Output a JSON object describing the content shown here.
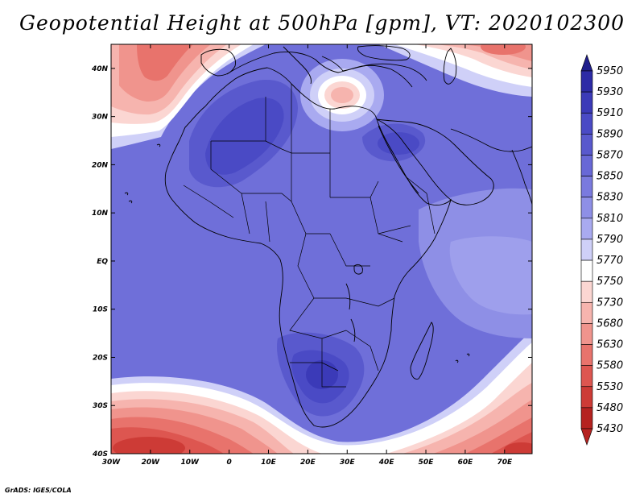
{
  "title": "Geopotential Height at 500hPa [gpm], VT: 2020102300",
  "footer": "GrADS: IGES/COLA",
  "map": {
    "lon_range": [
      -30,
      77
    ],
    "lat_range": [
      -40,
      45
    ],
    "x_ticks": [
      "30W",
      "20W",
      "10W",
      "0",
      "10E",
      "20E",
      "30E",
      "40E",
      "50E",
      "60E",
      "70E"
    ],
    "y_ticks": [
      "40S",
      "30S",
      "20S",
      "10S",
      "EQ",
      "10N",
      "20N",
      "30N",
      "40N"
    ]
  },
  "colorbar": {
    "levels": [
      "5950",
      "5930",
      "5910",
      "5890",
      "5870",
      "5850",
      "5830",
      "5810",
      "5790",
      "5770",
      "5750",
      "5730",
      "5680",
      "5630",
      "5580",
      "5530",
      "5480",
      "5430"
    ],
    "colors": [
      "#201e8c",
      "#2d2ba6",
      "#3b3ab8",
      "#4a4ac5",
      "#5959cd",
      "#6868d6",
      "#7a7ade",
      "#8e8fe6",
      "#a9aaf0",
      "#cfd0f8",
      "#ffffff",
      "#fbd6d2",
      "#f6b4ae",
      "#f0948d",
      "#e8736c",
      "#dd5650",
      "#cd3b36",
      "#b52220"
    ]
  }
}
